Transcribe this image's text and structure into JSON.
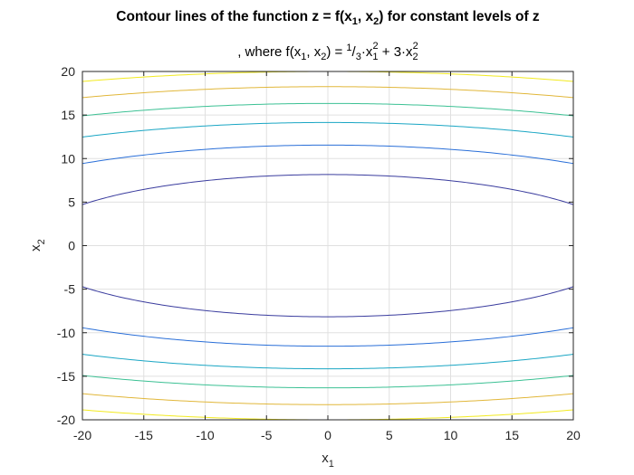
{
  "chart_data": {
    "type": "line",
    "title": {
      "a": "Contour lines of the function z = f(x",
      "b": "1",
      "c": ", x",
      "d": "2",
      "e": ") for constant levels of z"
    },
    "subtitle": {
      "a": ", where f(x",
      "b": "1",
      "c": ", x",
      "d": "2",
      "e": ") = ",
      "f": "1",
      "g": "/",
      "h": "3",
      "i": "·x",
      "j": "1",
      "k": "2",
      "l": " + 3·x",
      "m": "2",
      "n": "2"
    },
    "xlabel": {
      "main": "x",
      "sub": "1"
    },
    "ylabel": {
      "main": "x",
      "sub": "2"
    },
    "xlim": [
      -20,
      20
    ],
    "ylim": [
      -20,
      20
    ],
    "xticks": [
      "-20",
      "-15",
      "-10",
      "-5",
      "0",
      "5",
      "10",
      "15",
      "20"
    ],
    "yticks": [
      "-20",
      "-15",
      "-10",
      "-5",
      "0",
      "5",
      "10",
      "15",
      "20"
    ],
    "grid": true,
    "function": "1/3*x1^2 + 3*x2^2",
    "levels": [
      {
        "z": 200,
        "color": "#3a3c9e"
      },
      {
        "z": 400,
        "color": "#2a6fd8"
      },
      {
        "z": 600,
        "color": "#1aa6c4"
      },
      {
        "z": 800,
        "color": "#3cc194"
      },
      {
        "z": 1000,
        "color": "#e1b73a"
      },
      {
        "z": 1200,
        "color": "#f2ea1f"
      }
    ]
  }
}
